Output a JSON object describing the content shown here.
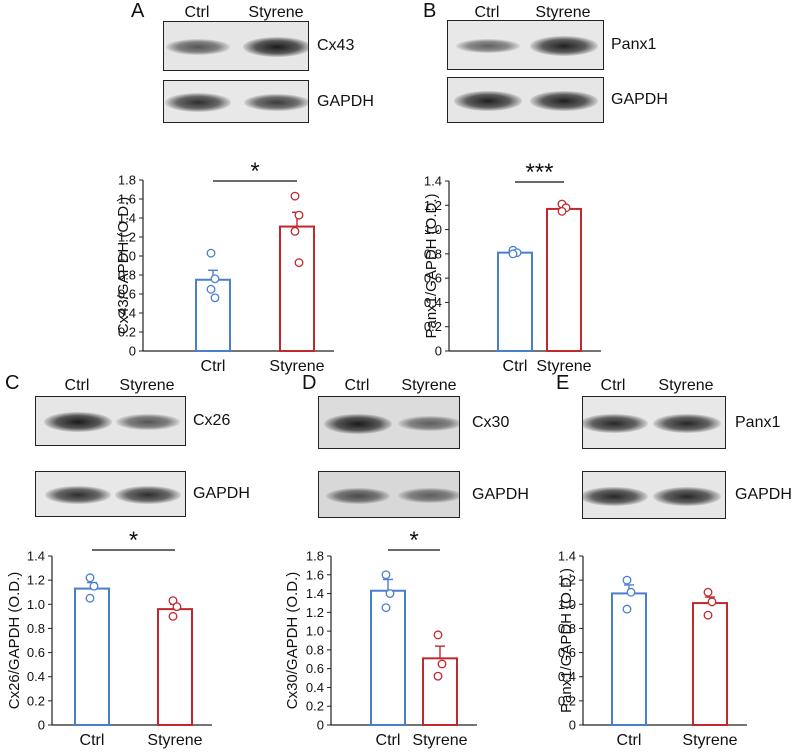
{
  "panels": {
    "A": {
      "letter": "A",
      "lanes": [
        "Ctrl",
        "Styrene"
      ],
      "blots": [
        {
          "label": "Cx43",
          "bands": [
            0.55,
            1.0
          ],
          "bg": "#e6e6e6"
        },
        {
          "label": "GAPDH",
          "bands": [
            0.85,
            0.75
          ],
          "bg": "#e8e8e8"
        }
      ]
    },
    "B": {
      "letter": "B",
      "lanes": [
        "Ctrl",
        "Styrene"
      ],
      "blots": [
        {
          "label": "Panx1",
          "bands": [
            0.45,
            0.95
          ],
          "bg": "#e8e8e8"
        },
        {
          "label": "GAPDH",
          "bands": [
            0.95,
            0.95
          ],
          "bg": "#e6e6e6"
        }
      ]
    },
    "C": {
      "letter": "C",
      "lanes": [
        "Ctrl",
        "Styrene"
      ],
      "blots": [
        {
          "label": "Cx26",
          "bands": [
            1.0,
            0.55
          ],
          "bg": "#e6e6e6"
        },
        {
          "label": "GAPDH",
          "bands": [
            0.85,
            0.85
          ],
          "bg": "#e8e8e8"
        }
      ]
    },
    "D": {
      "letter": "D",
      "lanes": [
        "Ctrl",
        "Styrene"
      ],
      "blots": [
        {
          "label": "Cx30",
          "bands": [
            1.0,
            0.45
          ],
          "bg": "#dcdcdc"
        },
        {
          "label": "GAPDH",
          "bands": [
            0.6,
            0.45
          ],
          "bg": "#d8d8d8"
        }
      ]
    },
    "E": {
      "letter": "E",
      "lanes": [
        "Ctrl",
        "Styrene"
      ],
      "blots": [
        {
          "label": "Panx1",
          "bands": [
            0.9,
            0.9
          ],
          "bg": "#e8e8e8"
        },
        {
          "label": "GAPDH",
          "bands": [
            0.9,
            0.9
          ],
          "bg": "#e6e6e6"
        }
      ]
    }
  },
  "colors": {
    "ctrl": "#4a7fd0",
    "styrene": "#c0282d",
    "axis": "#222222"
  },
  "chart_data": [
    {
      "id": "A",
      "type": "bar",
      "categories": [
        "Ctrl",
        "Styrene"
      ],
      "values": [
        0.75,
        1.31
      ],
      "errors": [
        0.1,
        0.15
      ],
      "points": [
        [
          1.03,
          0.76,
          0.65,
          0.56
        ],
        [
          1.63,
          1.43,
          1.26,
          0.93
        ]
      ],
      "ylabel": "Cx43/GAPDH (O.D.)",
      "ylim": [
        0,
        1.8
      ],
      "yticks": [
        "0",
        "0.2",
        "0.4",
        "0.6",
        "0.8",
        "1.0",
        "1.2",
        "1.4",
        "1.6",
        "1.8"
      ],
      "significance": "*"
    },
    {
      "id": "B",
      "type": "bar",
      "categories": [
        "Ctrl",
        "Styrene"
      ],
      "values": [
        0.81,
        1.17
      ],
      "errors": [
        0.01,
        0.02
      ],
      "points": [
        [
          0.83,
          0.81,
          0.8
        ],
        [
          1.21,
          1.18,
          1.15
        ]
      ],
      "ylabel": "Panx1/GAPDH (O.D.)",
      "ylim": [
        0,
        1.4
      ],
      "yticks": [
        "0",
        "0.2",
        "0.4",
        "0.6",
        "0.8",
        "1.0",
        "1.2",
        "1.4"
      ],
      "significance": "***"
    },
    {
      "id": "C",
      "type": "bar",
      "categories": [
        "Ctrl",
        "Styrene"
      ],
      "values": [
        1.13,
        0.96
      ],
      "errors": [
        0.05,
        0.04
      ],
      "points": [
        [
          1.22,
          1.15,
          1.05
        ],
        [
          1.03,
          0.98,
          0.9
        ]
      ],
      "ylabel": "Cx26/GAPDH (O.D.)",
      "ylim": [
        0,
        1.4
      ],
      "yticks": [
        "0",
        "0.2",
        "0.4",
        "0.6",
        "0.8",
        "1.0",
        "1.2",
        "1.4"
      ],
      "significance": "*"
    },
    {
      "id": "D",
      "type": "bar",
      "categories": [
        "Ctrl",
        "Styrene"
      ],
      "values": [
        1.43,
        0.71
      ],
      "errors": [
        0.12,
        0.13
      ],
      "points": [
        [
          1.6,
          1.4,
          1.25
        ],
        [
          0.96,
          0.65,
          0.52
        ]
      ],
      "ylabel": "Cx30/GAPDH (O.D.)",
      "ylim": [
        0,
        1.8
      ],
      "yticks": [
        "0",
        "0.2",
        "0.4",
        "0.6",
        "0.8",
        "1.0",
        "1.2",
        "1.4",
        "1.6",
        "1.8"
      ],
      "significance": "*"
    },
    {
      "id": "E",
      "type": "bar",
      "categories": [
        "Ctrl",
        "Styrene"
      ],
      "values": [
        1.09,
        1.01
      ],
      "errors": [
        0.07,
        0.05
      ],
      "points": [
        [
          1.2,
          1.1,
          0.96
        ],
        [
          1.1,
          1.02,
          0.91
        ]
      ],
      "ylabel": "Panx1/GAPDH (O.D.)",
      "ylim": [
        0,
        1.4
      ],
      "yticks": [
        "0",
        "0.2",
        "0.4",
        "0.6",
        "0.8",
        "1.0",
        "1.2",
        "1.4"
      ],
      "significance": ""
    }
  ]
}
